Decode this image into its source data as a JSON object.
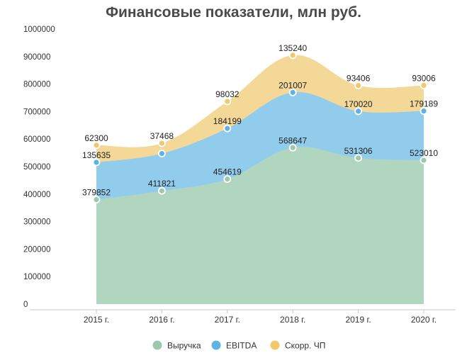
{
  "chart_data": {
    "type": "area",
    "stacked": true,
    "title": "Финансовые показатели, млн руб.",
    "xlabel": "",
    "ylabel": "",
    "categories": [
      "2015 г.",
      "2016 г.",
      "2017 г.",
      "2018 г.",
      "2019 г.",
      "2020 г."
    ],
    "ylim": [
      0,
      1000000
    ],
    "yticks": [
      "0",
      "100000",
      "200000",
      "300000",
      "400000",
      "500000",
      "600000",
      "700000",
      "800000",
      "900000",
      "1000000"
    ],
    "grid": false,
    "legend_position": "bottom",
    "series": [
      {
        "name": "Выручка",
        "color": "#b1d6c0",
        "marker_color": "#9cc9ad",
        "values": [
          379852,
          411821,
          454619,
          568647,
          531306,
          523010
        ],
        "labels": [
          "379852",
          "411821",
          "454619",
          "568647",
          "531306",
          "523010"
        ]
      },
      {
        "name": "EBITDA",
        "color": "#92ccec",
        "marker_color": "#5cb3e6",
        "values": [
          135635,
          135635,
          184199,
          201007,
          170020,
          179189
        ],
        "labels": [
          "135635",
          "135635",
          "184199",
          "201007",
          "170020",
          "179189"
        ]
      },
      {
        "name": "Скорр. ЧП",
        "color": "#f3d898",
        "marker_color": "#efc96c",
        "values": [
          62300,
          37468,
          98032,
          135240,
          93406,
          93006
        ],
        "labels": [
          "62300",
          "37468",
          "98032",
          "135240",
          "93406",
          "93006"
        ]
      }
    ],
    "visible_labels": {
      "EBITDA": [
        true,
        false,
        true,
        true,
        true,
        true
      ]
    }
  }
}
